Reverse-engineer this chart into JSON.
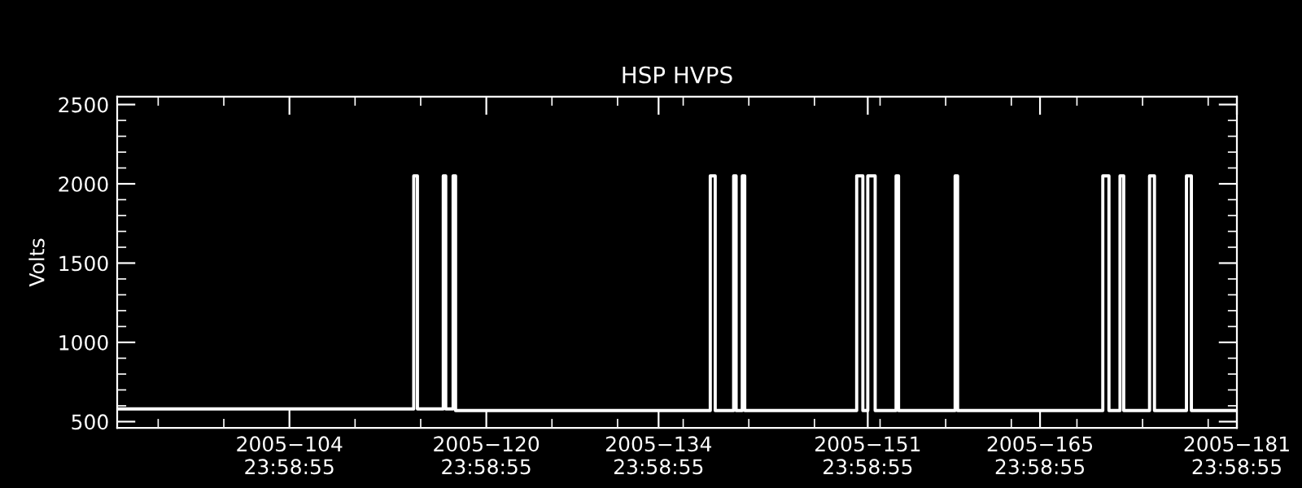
{
  "chart_data": {
    "type": "line",
    "title": "HSP HVPS",
    "ylabel": "Volts",
    "x": [
      "2005-03-31T23:58",
      "2005-04-25T02:24",
      "2005-04-25T02:24",
      "2005-04-25T09:36",
      "2005-04-25T09:36",
      "2005-04-27T12:00",
      "2005-04-27T12:00",
      "2005-04-27T16:48",
      "2005-04-27T16:48",
      "2005-04-28T07:12",
      "2005-04-28T07:12",
      "2005-04-28T12:00",
      "2005-04-28T12:00",
      "2005-05-19T04:48",
      "2005-05-19T04:48",
      "2005-05-19T14:24",
      "2005-05-19T14:24",
      "2005-05-21T02:24",
      "2005-05-21T02:24",
      "2005-05-21T07:12",
      "2005-05-21T07:12",
      "2005-05-21T19:12",
      "2005-05-21T19:12",
      "2005-05-22T00:00",
      "2005-05-22T00:00",
      "2005-05-31T02:24",
      "2005-05-31T02:24",
      "2005-05-31T14:24",
      "2005-05-31T14:24",
      "2005-06-01T00:00",
      "2005-06-01T00:00",
      "2005-06-01T14:24",
      "2005-06-01T14:24",
      "2005-06-03T07:12",
      "2005-06-03T07:12",
      "2005-06-03T12:00",
      "2005-06-03T12:00",
      "2005-06-08T02:24",
      "2005-06-08T02:24",
      "2005-06-08T07:12",
      "2005-06-08T07:12",
      "2005-06-20T02:24",
      "2005-06-20T02:24",
      "2005-06-20T14:24",
      "2005-06-20T14:24",
      "2005-06-21T12:00",
      "2005-06-21T12:00",
      "2005-06-21T19:12",
      "2005-06-21T19:12",
      "2005-06-23T21:36",
      "2005-06-23T21:36",
      "2005-06-24T07:12",
      "2005-06-24T07:12",
      "2005-06-26T21:36",
      "2005-06-26T21:36",
      "2005-06-27T07:12",
      "2005-06-27T07:12",
      "2005-06-30T23:58"
    ],
    "series": [
      {
        "color": "#ffffff",
        "values": [
          580,
          580,
          2050,
          2050,
          580,
          580,
          2050,
          2050,
          580,
          580,
          2050,
          2050,
          570,
          570,
          2050,
          2050,
          570,
          570,
          2050,
          2050,
          570,
          570,
          2050,
          2050,
          570,
          570,
          2050,
          2050,
          570,
          570,
          2050,
          2050,
          570,
          570,
          2050,
          2050,
          570,
          570,
          2050,
          2050,
          570,
          570,
          2050,
          2050,
          570,
          570,
          2050,
          2050,
          570,
          570,
          2050,
          2050,
          570,
          570,
          2050,
          2050,
          570,
          570
        ]
      }
    ],
    "xlim": [
      "2005-03-31T23:58",
      "2005-06-30T23:58"
    ],
    "xticks": [
      {
        "value": "2005-04-14T23:58",
        "label": "2005−104\n23:58:55"
      },
      {
        "value": "2005-04-30T23:58",
        "label": "2005−120\n23:58:55"
      },
      {
        "value": "2005-05-14T23:58",
        "label": "2005−134\n23:58:55"
      },
      {
        "value": "2005-05-31T23:58",
        "label": "2005−151\n23:58:55"
      },
      {
        "value": "2005-06-14T23:58",
        "label": "2005−165\n23:58:55"
      },
      {
        "value": "2005-06-30T23:58",
        "label": "2005−181\n23:58:55"
      }
    ],
    "ylim": [
      460,
      2550
    ],
    "yticks": [
      500,
      1000,
      1500,
      2000,
      2500
    ],
    "grid": false,
    "marker": "none",
    "line_style": "solid"
  }
}
